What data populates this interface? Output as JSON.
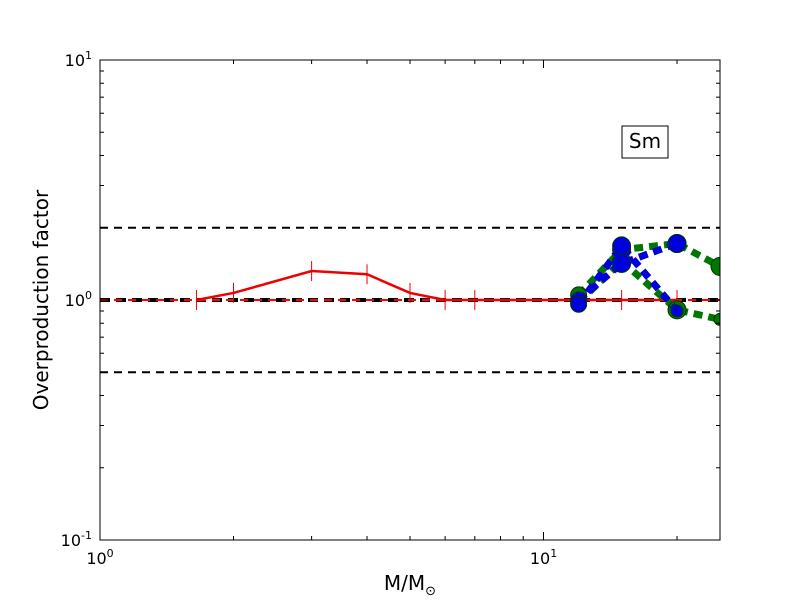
{
  "chart_data": {
    "type": "line",
    "title": "",
    "xlabel": "M/M",
    "xlabel_sub": "⊙",
    "ylabel": "Overproduction factor",
    "xscale": "log",
    "yscale": "log",
    "xlim": [
      1,
      25
    ],
    "ylim": [
      0.1,
      10
    ],
    "x_ticks": [
      {
        "value": 1,
        "base": "10",
        "exp": "0"
      },
      {
        "value": 10,
        "base": "10",
        "exp": "1"
      }
    ],
    "y_ticks": [
      {
        "value": 0.1,
        "base": "10",
        "exp": "-1"
      },
      {
        "value": 1,
        "base": "10",
        "exp": "0"
      },
      {
        "value": 10,
        "base": "10",
        "exp": "1"
      }
    ],
    "annotation": "Sm",
    "reference_lines": [
      {
        "y": 2.0,
        "style": "dashed",
        "color": "#000000",
        "width": "thin"
      },
      {
        "y": 1.0,
        "style": "dashed",
        "color": "#000000",
        "width": "thick"
      },
      {
        "y": 0.5,
        "style": "dashed",
        "color": "#000000",
        "width": "thin"
      },
      {
        "y": 1.0,
        "style": "dashed",
        "color": "#ff0000",
        "width": "thin"
      }
    ],
    "series": [
      {
        "color": "#ee0000",
        "style": "solid",
        "marker": "vertical-tick",
        "x": [
          1.65,
          2,
          3,
          4,
          5,
          6,
          7,
          12,
          15,
          20
        ],
        "y": [
          1.0,
          1.07,
          1.32,
          1.28,
          1.07,
          1.0,
          1.0,
          1.0,
          1.0,
          1.0
        ]
      },
      {
        "color": "#007700",
        "style": "dotted",
        "marker": "circle",
        "x": [
          12,
          15,
          20,
          25
        ],
        "y": [
          1.05,
          1.62,
          1.72,
          1.38
        ]
      },
      {
        "color": "#007700",
        "style": "dotted",
        "marker": "circle",
        "x": [
          12,
          15,
          20,
          25
        ],
        "y": [
          0.98,
          1.45,
          0.91,
          0.83
        ]
      },
      {
        "color": "#0000dd",
        "style": "dotted",
        "marker": "circle",
        "x": [
          12,
          15,
          20
        ],
        "y": [
          1.0,
          1.42,
          1.72
        ]
      },
      {
        "color": "#0000dd",
        "style": "dotted",
        "marker": "circle",
        "x": [
          12,
          15,
          20
        ],
        "y": [
          0.96,
          1.68,
          0.9
        ]
      }
    ]
  }
}
